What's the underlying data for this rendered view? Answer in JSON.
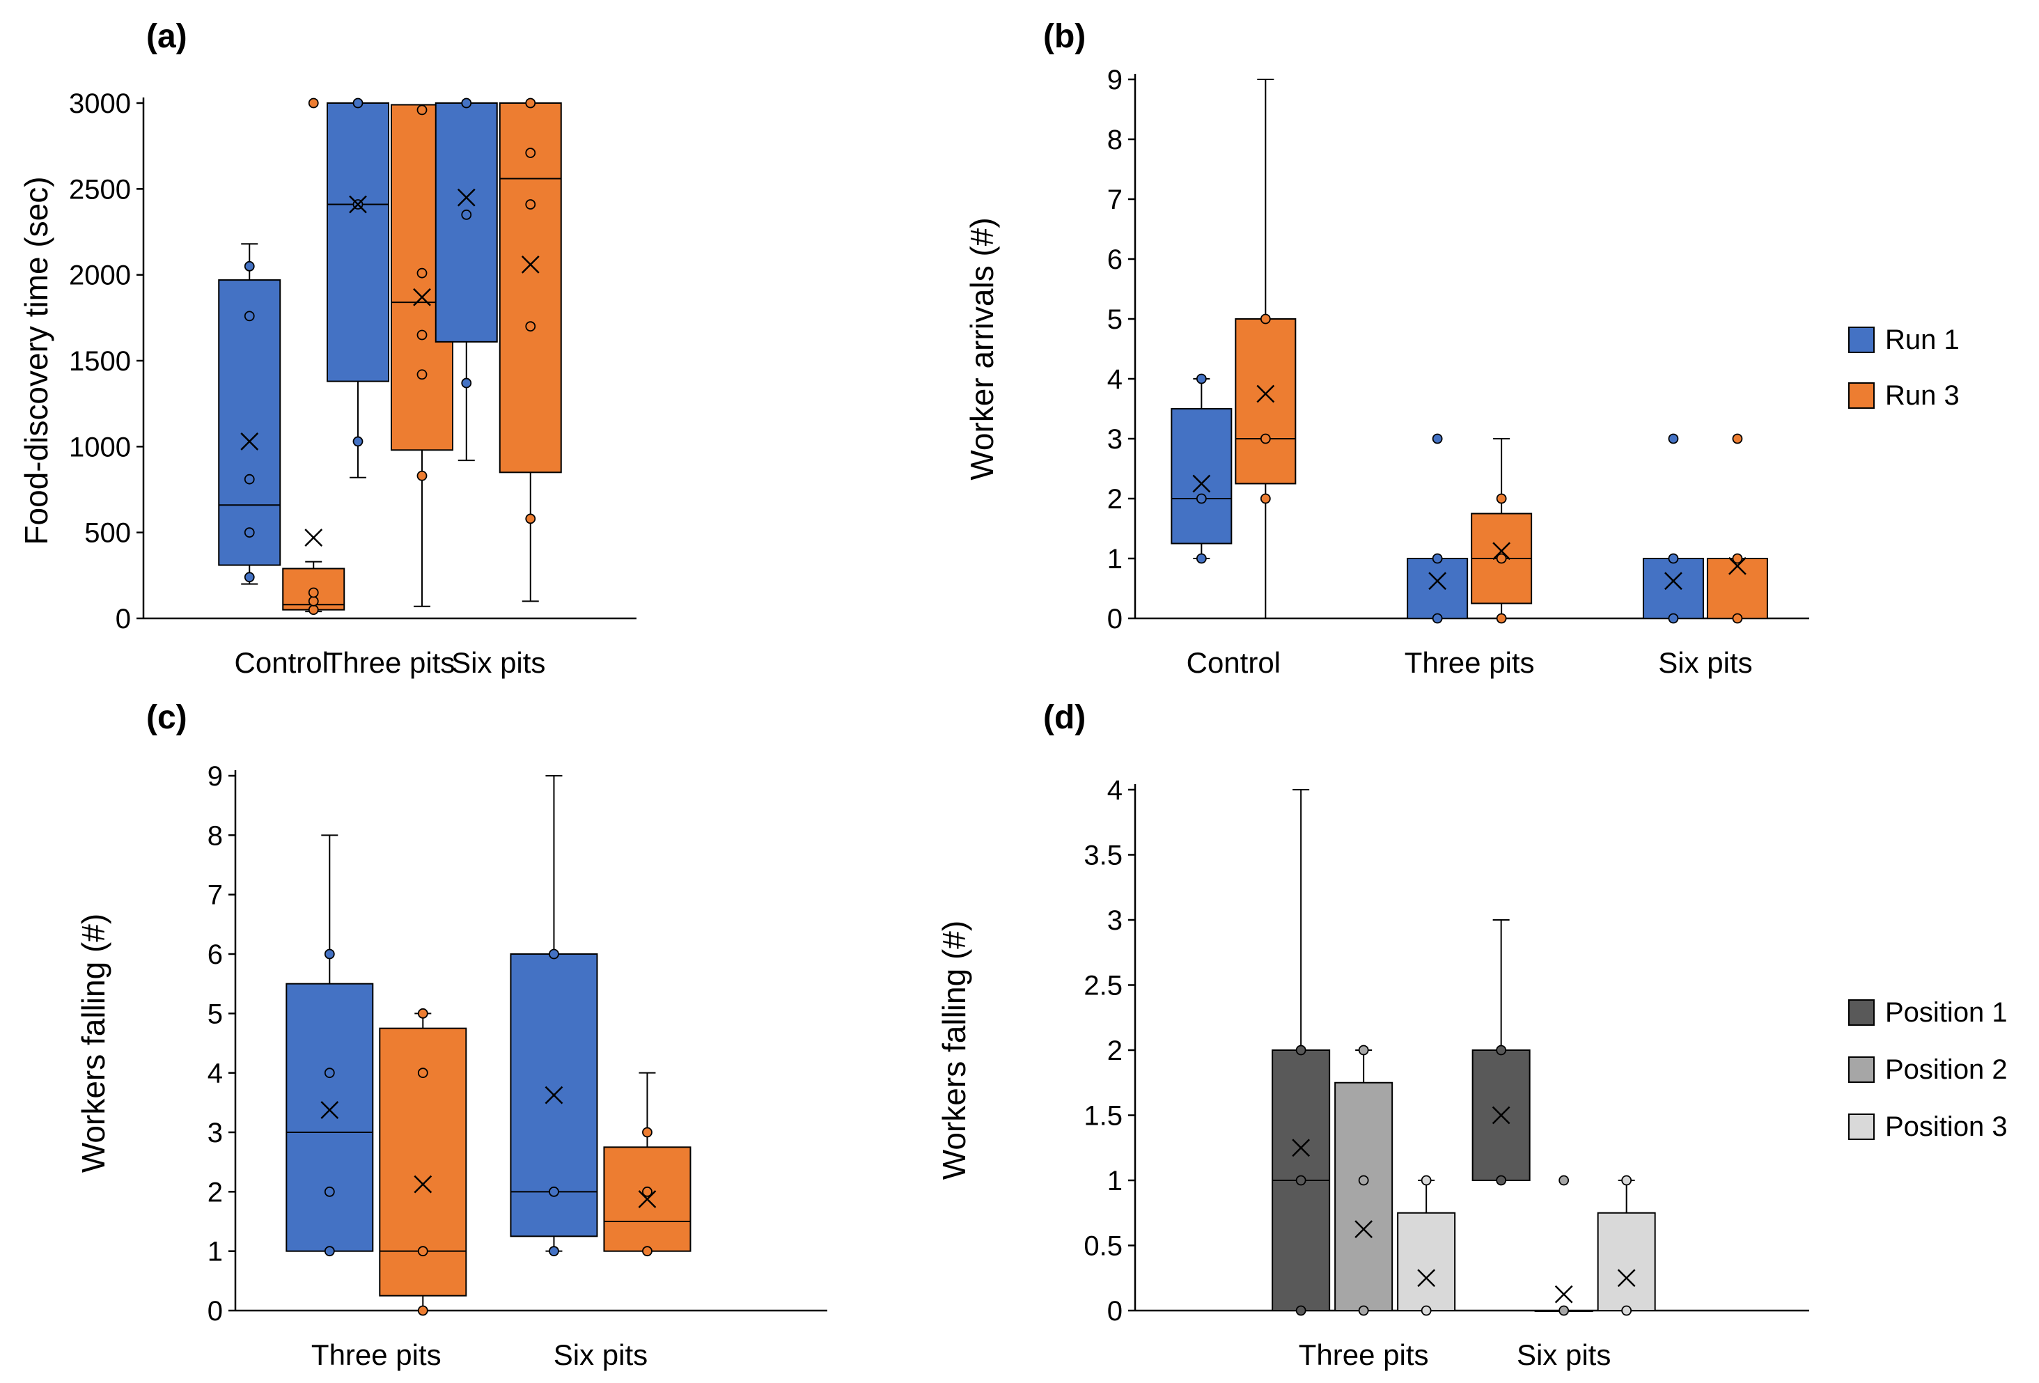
{
  "colors": {
    "run1": "#4472c4",
    "run3": "#ed7d31",
    "position1": "#595959",
    "position2": "#a6a6a6",
    "position3": "#d9d9d9",
    "axis": "#000000"
  },
  "legends": [
    {
      "entries": [
        {
          "label": "Run 1",
          "color": "#4472c4"
        },
        {
          "label": "Run 3",
          "color": "#ed7d31"
        }
      ]
    },
    {
      "entries": [
        {
          "label": "Position 1",
          "color": "#595959"
        },
        {
          "label": "Position 2",
          "color": "#a6a6a6"
        },
        {
          "label": "Position 3",
          "color": "#d9d9d9"
        }
      ]
    }
  ],
  "chart_data": [
    {
      "panel": "(a)",
      "type": "box",
      "ylabel": "Food-discovery time (sec)",
      "ylim": [
        0,
        3000
      ],
      "yticks": [
        0,
        500,
        1000,
        1500,
        2000,
        2500,
        3000
      ],
      "categories": [
        "Control",
        "Three pits",
        "Six pits"
      ],
      "series": [
        {
          "name": "Run 1",
          "boxes": [
            {
              "whisker_low": 200,
              "q1": 310,
              "median": 660,
              "q3": 1970,
              "whisker_high": 2180,
              "mean": 1030,
              "points": [
                240,
                500,
                810,
                1760,
                2050
              ]
            },
            {
              "whisker_low": 820,
              "q1": 1380,
              "median": 2410,
              "q3": 3000,
              "whisker_high": 3000,
              "mean": 2410,
              "points": [
                1030,
                2410,
                3000
              ]
            },
            {
              "whisker_low": 920,
              "q1": 1610,
              "median": 3000,
              "q3": 3000,
              "whisker_high": 3000,
              "mean": 2450,
              "points": [
                1370,
                2350,
                3000
              ]
            }
          ]
        },
        {
          "name": "Run 3",
          "boxes": [
            {
              "whisker_low": 40,
              "q1": 50,
              "median": 80,
              "q3": 290,
              "whisker_high": 330,
              "mean": 470,
              "points": [
                50,
                100,
                150,
                3000
              ]
            },
            {
              "whisker_low": 70,
              "q1": 980,
              "median": 1840,
              "q3": 2990,
              "whisker_high": 2990,
              "mean": 1870,
              "points": [
                830,
                1420,
                1650,
                2010,
                2960
              ]
            },
            {
              "whisker_low": 100,
              "q1": 850,
              "median": 2560,
              "q3": 3000,
              "whisker_high": 3000,
              "mean": 2060,
              "points": [
                580,
                1700,
                2410,
                2710,
                3000
              ]
            }
          ]
        }
      ]
    },
    {
      "panel": "(b)",
      "type": "box",
      "ylabel": "Worker arrivals (#)",
      "ylim": [
        0,
        9
      ],
      "yticks": [
        0,
        1,
        2,
        3,
        4,
        5,
        6,
        7,
        8,
        9
      ],
      "categories": [
        "Control",
        "Three pits",
        "Six pits"
      ],
      "series": [
        {
          "name": "Run 1",
          "boxes": [
            {
              "whisker_low": 1,
              "q1": 1.25,
              "median": 2,
              "q3": 3.5,
              "whisker_high": 4,
              "mean": 2.25,
              "points": [
                1,
                2,
                4
              ]
            },
            {
              "whisker_low": 0,
              "q1": 0,
              "median": 0,
              "q3": 1,
              "whisker_high": 1,
              "mean": 0.625,
              "points": [
                0,
                1,
                3
              ]
            },
            {
              "whisker_low": 0,
              "q1": 0,
              "median": 0,
              "q3": 1,
              "whisker_high": 1,
              "mean": 0.625,
              "points": [
                0,
                1,
                3
              ]
            }
          ]
        },
        {
          "name": "Run 3",
          "boxes": [
            {
              "whisker_low": 0,
              "q1": 2.25,
              "median": 3,
              "q3": 5,
              "whisker_high": 9,
              "mean": 3.75,
              "points": [
                2,
                3,
                5
              ]
            },
            {
              "whisker_low": 0,
              "q1": 0.25,
              "median": 1,
              "q3": 1.75,
              "whisker_high": 3,
              "mean": 1.125,
              "points": [
                0,
                1,
                2
              ]
            },
            {
              "whisker_low": 0,
              "q1": 0,
              "median": 1,
              "q3": 1,
              "whisker_high": 1,
              "mean": 0.875,
              "points": [
                0,
                1,
                3
              ]
            }
          ]
        }
      ]
    },
    {
      "panel": "(c)",
      "type": "box",
      "ylabel": "Workers falling (#)",
      "ylim": [
        0,
        9
      ],
      "yticks": [
        0,
        1,
        2,
        3,
        4,
        5,
        6,
        7,
        8,
        9
      ],
      "categories": [
        "Three pits",
        "Six pits"
      ],
      "series": [
        {
          "name": "Run 1",
          "boxes": [
            {
              "whisker_low": 1,
              "q1": 1,
              "median": 3,
              "q3": 5.5,
              "whisker_high": 8,
              "mean": 3.375,
              "points": [
                1,
                2,
                4,
                6
              ]
            },
            {
              "whisker_low": 1,
              "q1": 1.25,
              "median": 2,
              "q3": 6,
              "whisker_high": 9,
              "mean": 3.625,
              "points": [
                1,
                2,
                6
              ]
            }
          ]
        },
        {
          "name": "Run 3",
          "boxes": [
            {
              "whisker_low": 0,
              "q1": 0.25,
              "median": 1,
              "q3": 4.75,
              "whisker_high": 5,
              "mean": 2.125,
              "points": [
                0,
                1,
                4,
                5
              ]
            },
            {
              "whisker_low": 1,
              "q1": 1,
              "median": 1.5,
              "q3": 2.75,
              "whisker_high": 4,
              "mean": 1.875,
              "points": [
                1,
                2,
                3
              ]
            }
          ]
        }
      ]
    },
    {
      "panel": "(d)",
      "type": "box",
      "ylabel": "Workers falling (#)",
      "ylim": [
        0,
        4
      ],
      "yticks": [
        0,
        0.5,
        1,
        1.5,
        2,
        2.5,
        3,
        3.5,
        4
      ],
      "categories": [
        "Three pits",
        "Six pits"
      ],
      "series": [
        {
          "name": "Position 1",
          "boxes": [
            {
              "whisker_low": 0,
              "q1": 0,
              "median": 1,
              "q3": 2,
              "whisker_high": 4,
              "mean": 1.25,
              "points": [
                0,
                1,
                2
              ]
            },
            {
              "whisker_low": 1,
              "q1": 1,
              "median": 2,
              "q3": 2,
              "whisker_high": 3,
              "mean": 1.5,
              "points": [
                1,
                2
              ]
            }
          ]
        },
        {
          "name": "Position 2",
          "boxes": [
            {
              "whisker_low": 0,
              "q1": 0,
              "median": 0,
              "q3": 1.75,
              "whisker_high": 2,
              "mean": 0.625,
              "points": [
                0,
                1,
                2
              ]
            },
            {
              "whisker_low": 0,
              "q1": 0,
              "median": 0,
              "q3": 0,
              "whisker_high": 0,
              "mean": 0.125,
              "points": [
                0,
                1
              ]
            }
          ]
        },
        {
          "name": "Position 3",
          "boxes": [
            {
              "whisker_low": 0,
              "q1": 0,
              "median": 0,
              "q3": 0.75,
              "whisker_high": 1,
              "mean": 0.25,
              "points": [
                0,
                1
              ]
            },
            {
              "whisker_low": 0,
              "q1": 0,
              "median": 0,
              "q3": 0.75,
              "whisker_high": 1,
              "mean": 0.25,
              "points": [
                0,
                1
              ]
            }
          ]
        }
      ]
    }
  ]
}
